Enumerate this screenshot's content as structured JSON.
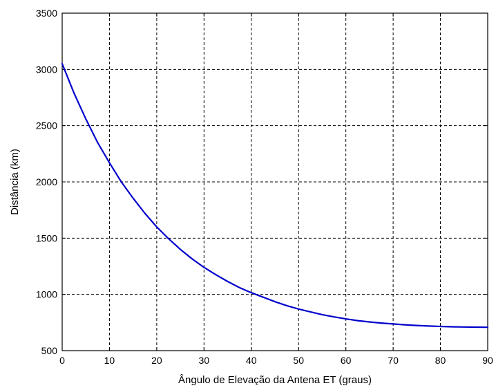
{
  "chart_data": {
    "type": "line",
    "title": "",
    "xlabel": "Ângulo de Elevação da Antena ET (graus)",
    "ylabel": "Distância (km)",
    "xlim": [
      0,
      90
    ],
    "ylim": [
      500,
      3500
    ],
    "x_ticks": [
      0,
      10,
      20,
      30,
      40,
      50,
      60,
      70,
      80,
      90
    ],
    "y_ticks": [
      500,
      1000,
      1500,
      2000,
      2500,
      3000,
      3500
    ],
    "grid": true,
    "series": [
      {
        "color": "#0000cc",
        "x": [
          0,
          2.5,
          5,
          7.5,
          10,
          12.5,
          15,
          17.5,
          20,
          22.5,
          25,
          27.5,
          30,
          32.5,
          35,
          37.5,
          40,
          42.5,
          45,
          47.5,
          50,
          52.5,
          55,
          57.5,
          60,
          62.5,
          65,
          67.5,
          70,
          72.5,
          75,
          77.5,
          80,
          82.5,
          85,
          87.5,
          90
        ],
        "y": [
          3050,
          2790,
          2560,
          2350,
          2170,
          2000,
          1855,
          1720,
          1600,
          1495,
          1400,
          1315,
          1240,
          1175,
          1115,
          1060,
          1015,
          975,
          935,
          900,
          870,
          845,
          820,
          800,
          782,
          767,
          755,
          745,
          737,
          730,
          724,
          719,
          715,
          712,
          710,
          709,
          708
        ]
      }
    ]
  }
}
